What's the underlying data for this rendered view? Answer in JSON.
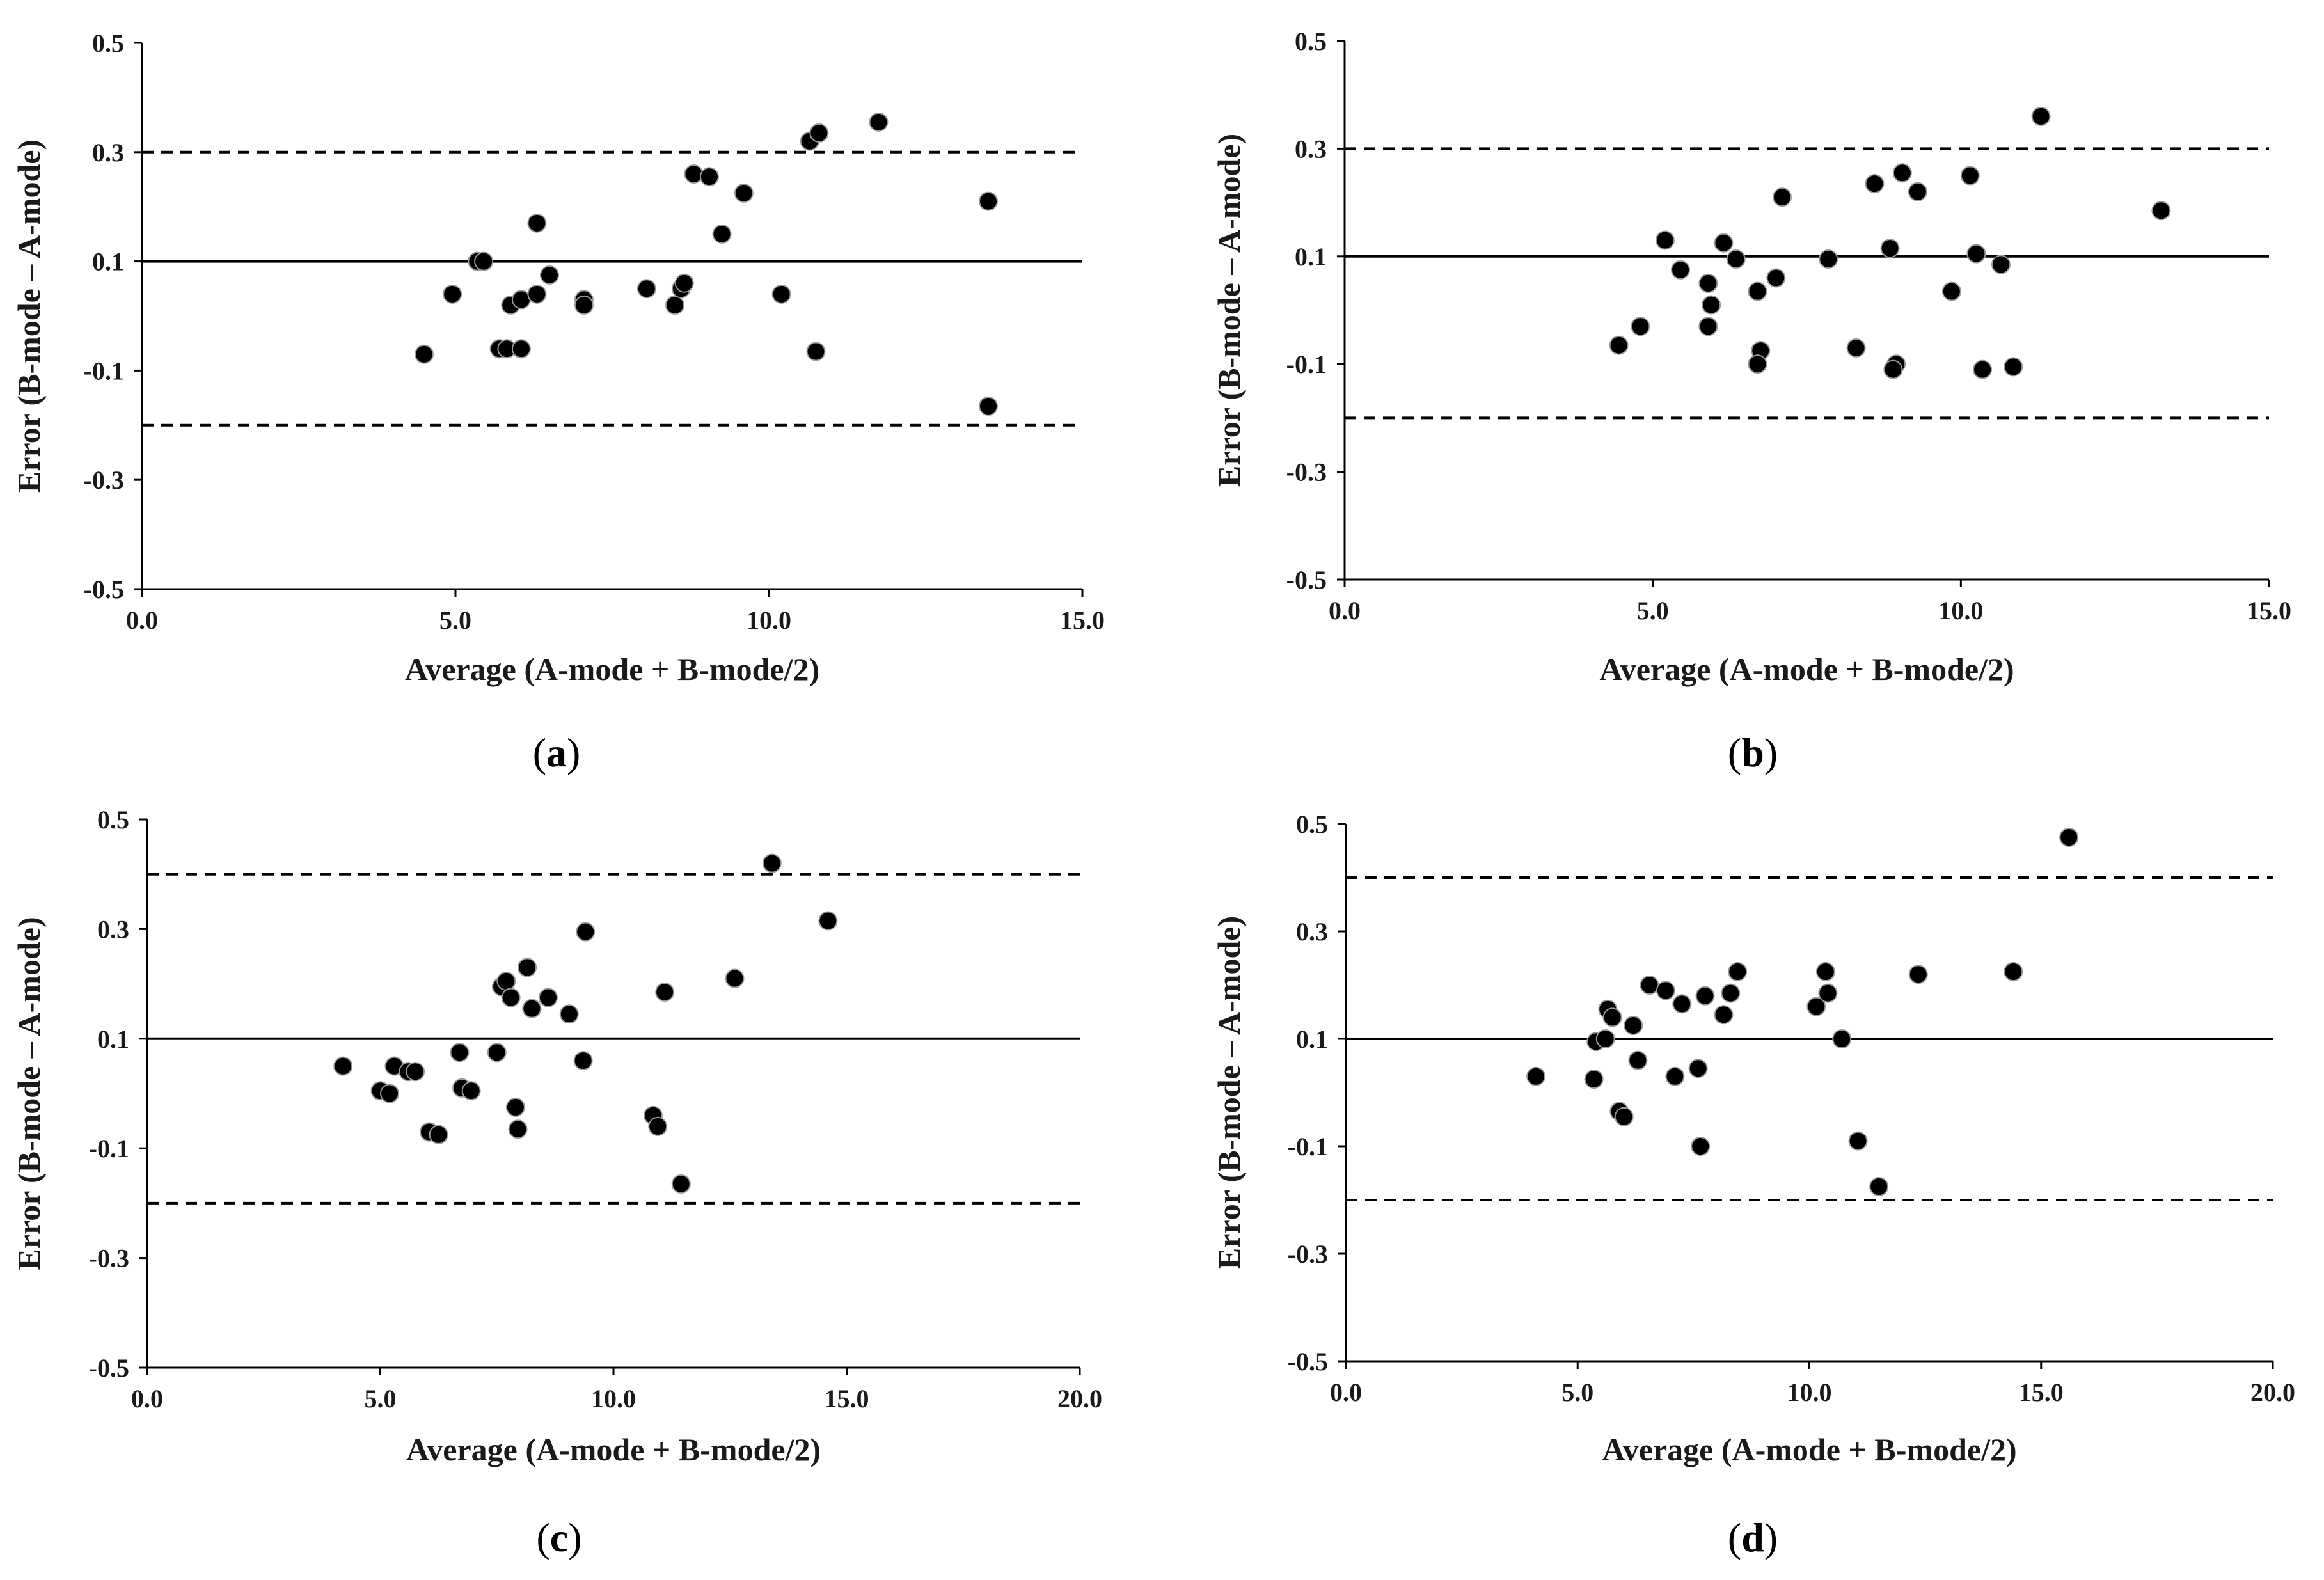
{
  "figure": {
    "colors": {
      "axis": "#000000",
      "point": "#000000",
      "point_edge": "#9a9a9a",
      "text": "#1a1a1a"
    }
  },
  "chart_data": [
    {
      "panel": "a",
      "caption_letter": "a",
      "type": "scatter",
      "xlabel": "Average (A-mode + B-mode/2)",
      "ylabel": "Error (B-mode – A-mode)",
      "xlim": [
        0,
        15
      ],
      "ylim": [
        -0.5,
        0.5
      ],
      "xticks": [
        0,
        5,
        10,
        15
      ],
      "xtick_labels": [
        "0.0",
        "5.0",
        "10.0",
        "15.0"
      ],
      "yticks": [
        -0.5,
        -0.3,
        -0.1,
        0.1,
        0.3,
        0.5
      ],
      "ytick_labels": [
        "-0.5",
        "-0.3",
        "-0.1",
        "0.1",
        "0.3",
        "0.5"
      ],
      "mean_line": 0.1,
      "limits_of_agreement": [
        0.3,
        -0.2
      ],
      "x": [
        4.5,
        4.95,
        5.35,
        5.45,
        5.7,
        5.82,
        5.88,
        6.05,
        6.05,
        6.3,
        6.3,
        6.5,
        7.05,
        7.05,
        8.05,
        8.5,
        8.6,
        8.65,
        8.8,
        9.05,
        9.25,
        9.6,
        10.2,
        10.65,
        10.8,
        10.75,
        11.75,
        13.5,
        13.5
      ],
      "y": [
        -0.07,
        0.04,
        0.1,
        0.1,
        -0.06,
        -0.06,
        0.02,
        0.03,
        -0.06,
        0.17,
        0.04,
        0.075,
        0.03,
        0.02,
        0.05,
        0.02,
        0.05,
        0.06,
        0.26,
        0.255,
        0.15,
        0.225,
        0.04,
        0.32,
        0.335,
        -0.065,
        0.355,
        0.21,
        -0.165
      ]
    },
    {
      "panel": "b",
      "caption_letter": "b",
      "type": "scatter",
      "xlabel": "Average (A-mode + B-mode/2)",
      "ylabel": "Error (B-mode – A-mode)",
      "xlim": [
        0,
        15
      ],
      "ylim": [
        -0.5,
        0.5
      ],
      "xticks": [
        0,
        5,
        10,
        15
      ],
      "xtick_labels": [
        "0.0",
        "5.0",
        "10.0",
        "15.0"
      ],
      "yticks": [
        -0.5,
        -0.3,
        -0.1,
        0.1,
        0.3,
        0.5
      ],
      "ytick_labels": [
        "-0.5",
        "-0.3",
        "-0.1",
        "0.1",
        "0.3",
        "0.5"
      ],
      "mean_line": 0.1,
      "limits_of_agreement": [
        0.3,
        -0.2
      ],
      "x": [
        4.45,
        4.8,
        5.2,
        5.45,
        5.9,
        5.95,
        5.9,
        6.15,
        6.35,
        6.7,
        6.75,
        6.7,
        7.0,
        7.1,
        7.85,
        8.3,
        8.6,
        8.85,
        8.95,
        8.9,
        9.05,
        9.3,
        9.85,
        10.15,
        10.25,
        10.35,
        10.65,
        10.85,
        11.3,
        13.25
      ],
      "y": [
        -0.065,
        -0.03,
        0.13,
        0.075,
        0.05,
        0.01,
        -0.03,
        0.125,
        0.095,
        0.035,
        -0.075,
        -0.1,
        0.06,
        0.21,
        0.095,
        -0.07,
        0.235,
        0.115,
        -0.1,
        -0.11,
        0.255,
        0.22,
        0.035,
        0.25,
        0.105,
        -0.11,
        0.085,
        -0.105,
        0.36,
        0.185
      ]
    },
    {
      "panel": "c",
      "caption_letter": "c",
      "type": "scatter",
      "xlabel": "Average (A-mode + B-mode/2)",
      "ylabel": "Error (B-mode – A-mode)",
      "xlim": [
        0,
        20
      ],
      "ylim": [
        -0.5,
        0.5
      ],
      "xticks": [
        0,
        5,
        10,
        15,
        20
      ],
      "xtick_labels": [
        "0.0",
        "5.0",
        "10.0",
        "15.0",
        "20.0"
      ],
      "yticks": [
        -0.5,
        -0.3,
        -0.1,
        0.1,
        0.3,
        0.5
      ],
      "ytick_labels": [
        "-0.5",
        "-0.3",
        "-0.1",
        "0.1",
        "0.3",
        "0.5"
      ],
      "mean_line": 0.1,
      "limits_of_agreement": [
        0.4,
        -0.2
      ],
      "x": [
        4.2,
        5.0,
        5.2,
        5.3,
        5.6,
        5.75,
        6.05,
        6.25,
        6.7,
        6.75,
        6.95,
        7.5,
        7.6,
        7.7,
        7.8,
        7.9,
        7.95,
        8.15,
        8.25,
        8.6,
        9.05,
        9.35,
        9.4,
        10.85,
        10.95,
        11.1,
        11.45,
        12.6,
        13.4,
        14.6
      ],
      "y": [
        0.05,
        0.005,
        0.0,
        0.05,
        0.04,
        0.04,
        -0.07,
        -0.075,
        0.075,
        0.01,
        0.005,
        0.075,
        0.195,
        0.205,
        0.175,
        -0.025,
        -0.065,
        0.23,
        0.155,
        0.175,
        0.145,
        0.06,
        0.295,
        -0.04,
        -0.06,
        0.185,
        -0.165,
        0.21,
        0.42,
        0.315
      ]
    },
    {
      "panel": "d",
      "caption_letter": "d",
      "type": "scatter",
      "xlabel": "Average (A-mode + B-mode/2)",
      "ylabel": "Error (B-mode – A-mode)",
      "xlim": [
        0,
        20
      ],
      "ylim": [
        -0.5,
        0.5
      ],
      "xticks": [
        0,
        5,
        10,
        15,
        20
      ],
      "xtick_labels": [
        "0.0",
        "5.0",
        "10.0",
        "15.0",
        "20.0"
      ],
      "yticks": [
        -0.5,
        -0.3,
        -0.1,
        0.1,
        0.3,
        0.5
      ],
      "ytick_labels": [
        "-0.5",
        "-0.3",
        "-0.1",
        "0.1",
        "0.3",
        "0.5"
      ],
      "mean_line": 0.1,
      "limits_of_agreement": [
        0.4,
        -0.2
      ],
      "x": [
        4.1,
        5.35,
        5.4,
        5.6,
        5.65,
        5.75,
        5.9,
        6.0,
        6.2,
        6.3,
        6.55,
        6.9,
        7.1,
        7.25,
        7.6,
        7.65,
        7.75,
        8.15,
        8.3,
        8.45,
        10.15,
        10.35,
        10.4,
        10.7,
        11.05,
        11.5,
        12.35,
        14.4,
        15.6
      ],
      "y": [
        0.03,
        0.025,
        0.095,
        0.1,
        0.155,
        0.14,
        -0.035,
        -0.045,
        0.125,
        0.06,
        0.2,
        0.19,
        0.03,
        0.165,
        0.045,
        -0.1,
        0.18,
        0.145,
        0.185,
        0.225,
        0.16,
        0.225,
        0.185,
        0.1,
        -0.09,
        -0.175,
        0.22,
        0.225,
        0.475
      ]
    }
  ]
}
